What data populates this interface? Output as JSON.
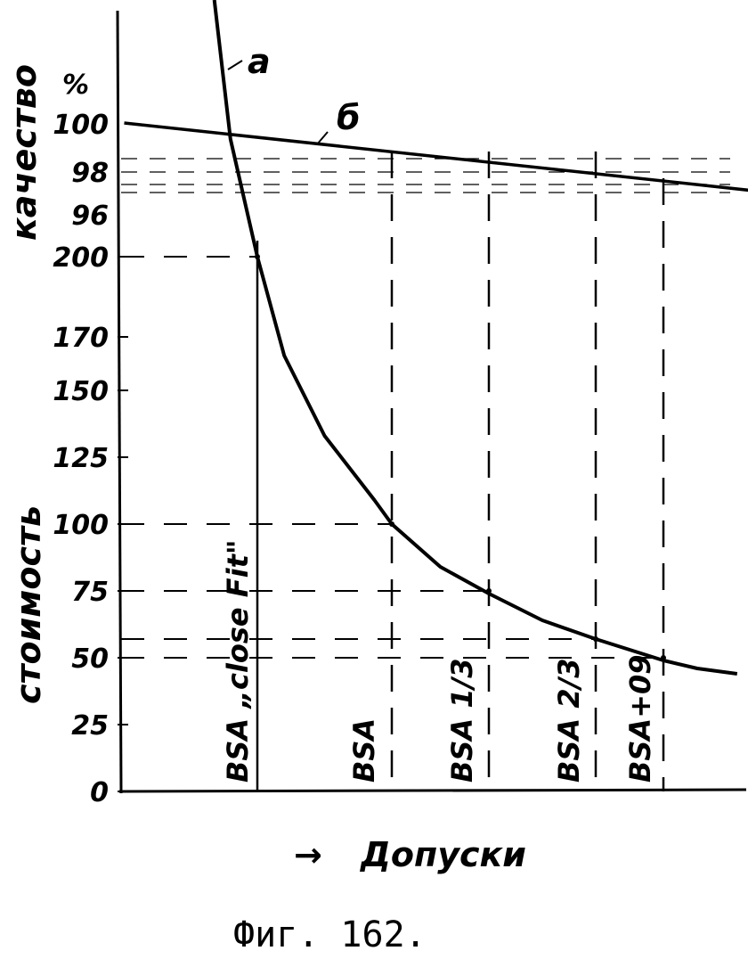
{
  "chart_data": {
    "type": "line",
    "caption": "Фиг. 162.",
    "xlabel": "Допуски",
    "xlabel_arrow": "→",
    "ylabel_cost": "стоимость",
    "ylabel_quality": "качество",
    "quality_unit": "%",
    "cost_ticks": [
      "0",
      "25",
      "50",
      "75",
      "100",
      "125",
      "150",
      "170",
      "200"
    ],
    "cost_tick_values": [
      0,
      25,
      50,
      75,
      100,
      125,
      150,
      170,
      200
    ],
    "quality_ticks": [
      "100",
      "98",
      "96"
    ],
    "quality_tick_values": [
      100,
      98,
      96
    ],
    "categories": [
      "BSA „close Fit\"",
      "BSA",
      "BSA 1/3",
      "BSA 2/3",
      "BSA+09"
    ],
    "category_costs": [
      200,
      100,
      75,
      57,
      50
    ],
    "series": [
      {
        "name": "а",
        "label": "а",
        "measure": "cost",
        "points": [
          [
            -0.32,
            296
          ],
          [
            -0.2,
            244
          ],
          [
            -0.1,
            222
          ],
          [
            0,
            200
          ],
          [
            0.2,
            163
          ],
          [
            0.5,
            133
          ],
          [
            0.87,
            109
          ],
          [
            1,
            100
          ],
          [
            1.5,
            84
          ],
          [
            2,
            74
          ],
          [
            2.5,
            64
          ],
          [
            3,
            57
          ],
          [
            3.5,
            53
          ],
          [
            4,
            49
          ],
          [
            4.5,
            46
          ],
          [
            5.09,
            44
          ]
        ]
      },
      {
        "name": "б",
        "label": "б",
        "measure": "quality",
        "points": [
          [
            -0.99,
            100
          ],
          [
            5.8,
            97.2
          ]
        ]
      }
    ]
  }
}
